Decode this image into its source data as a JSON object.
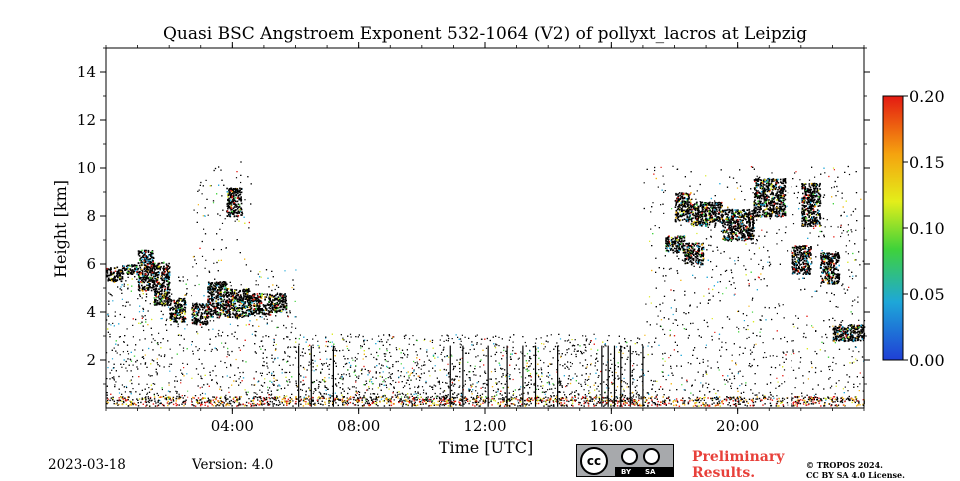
{
  "chart_data": {
    "type": "heatmap",
    "title": "Quasi BSC Angstroem Exponent 532-1064 (V2) of pollyxt_lacros at Leipzig",
    "xlabel": "Time [UTC]",
    "ylabel": "Height [km]",
    "xlim_hours": [
      0,
      24
    ],
    "ylim_km": [
      0,
      15
    ],
    "x_ticks": [
      {
        "value": 4,
        "label": "04:00"
      },
      {
        "value": 8,
        "label": "08:00"
      },
      {
        "value": 12,
        "label": "12:00"
      },
      {
        "value": 16,
        "label": "16:00"
      },
      {
        "value": 20,
        "label": "20:00"
      }
    ],
    "y_ticks": [
      {
        "value": 2,
        "label": "2"
      },
      {
        "value": 4,
        "label": "4"
      },
      {
        "value": 6,
        "label": "6"
      },
      {
        "value": 8,
        "label": "8"
      },
      {
        "value": 10,
        "label": "10"
      },
      {
        "value": 12,
        "label": "12"
      },
      {
        "value": 14,
        "label": "14"
      }
    ],
    "colorbar": {
      "range": [
        0.0,
        0.2
      ],
      "ticks": [
        {
          "value": 0.0,
          "label": "0.00"
        },
        {
          "value": 0.05,
          "label": "0.05"
        },
        {
          "value": 0.1,
          "label": "0.10"
        },
        {
          "value": 0.15,
          "label": "0.15"
        },
        {
          "value": 0.2,
          "label": "0.20"
        }
      ]
    },
    "dense_layers": [
      {
        "t0": 0.0,
        "t1": 0.5,
        "h0": 5.3,
        "h1": 5.9
      },
      {
        "t0": 0.5,
        "t1": 1.0,
        "h0": 5.6,
        "h1": 6.0
      },
      {
        "t0": 1.0,
        "t1": 1.5,
        "h0": 4.9,
        "h1": 6.6
      },
      {
        "t0": 1.5,
        "t1": 2.0,
        "h0": 4.3,
        "h1": 6.1
      },
      {
        "t0": 2.0,
        "t1": 2.5,
        "h0": 3.6,
        "h1": 4.6
      },
      {
        "t0": 2.7,
        "t1": 3.2,
        "h0": 3.5,
        "h1": 4.4
      },
      {
        "t0": 3.2,
        "t1": 3.8,
        "h0": 3.8,
        "h1": 5.3
      },
      {
        "t0": 3.8,
        "t1": 4.5,
        "h0": 3.8,
        "h1": 5.0
      },
      {
        "t0": 4.5,
        "t1": 5.2,
        "h0": 3.9,
        "h1": 4.8
      },
      {
        "t0": 5.2,
        "t1": 5.7,
        "h0": 4.0,
        "h1": 4.8
      },
      {
        "t0": 3.8,
        "t1": 4.3,
        "h0": 8.0,
        "h1": 9.2
      },
      {
        "t0": 18.0,
        "t1": 18.5,
        "h0": 7.8,
        "h1": 9.0
      },
      {
        "t0": 17.7,
        "t1": 18.3,
        "h0": 6.5,
        "h1": 7.2
      },
      {
        "t0": 18.3,
        "t1": 18.9,
        "h0": 6.0,
        "h1": 6.9
      },
      {
        "t0": 18.5,
        "t1": 19.5,
        "h0": 7.6,
        "h1": 8.6
      },
      {
        "t0": 19.5,
        "t1": 20.5,
        "h0": 7.0,
        "h1": 8.3
      },
      {
        "t0": 20.5,
        "t1": 21.5,
        "h0": 8.0,
        "h1": 9.6
      },
      {
        "t0": 21.7,
        "t1": 22.3,
        "h0": 5.6,
        "h1": 6.8
      },
      {
        "t0": 22.0,
        "t1": 22.6,
        "h0": 7.6,
        "h1": 9.4
      },
      {
        "t0": 22.6,
        "t1": 23.2,
        "h0": 5.2,
        "h1": 6.5
      },
      {
        "t0": 23.0,
        "t1": 24.0,
        "h0": 2.8,
        "h1": 3.5
      }
    ]
  },
  "footer": {
    "date": "2023-03-18",
    "version": "Version: 4.0",
    "preliminary_line1": "Preliminary",
    "preliminary_line2": "Results.",
    "copyright_line1": "© TROPOS 2024.",
    "copyright_line2": "CC BY SA 4.0 License.",
    "license_cc": "cc",
    "license_by": "BY",
    "license_sa": "SA"
  }
}
